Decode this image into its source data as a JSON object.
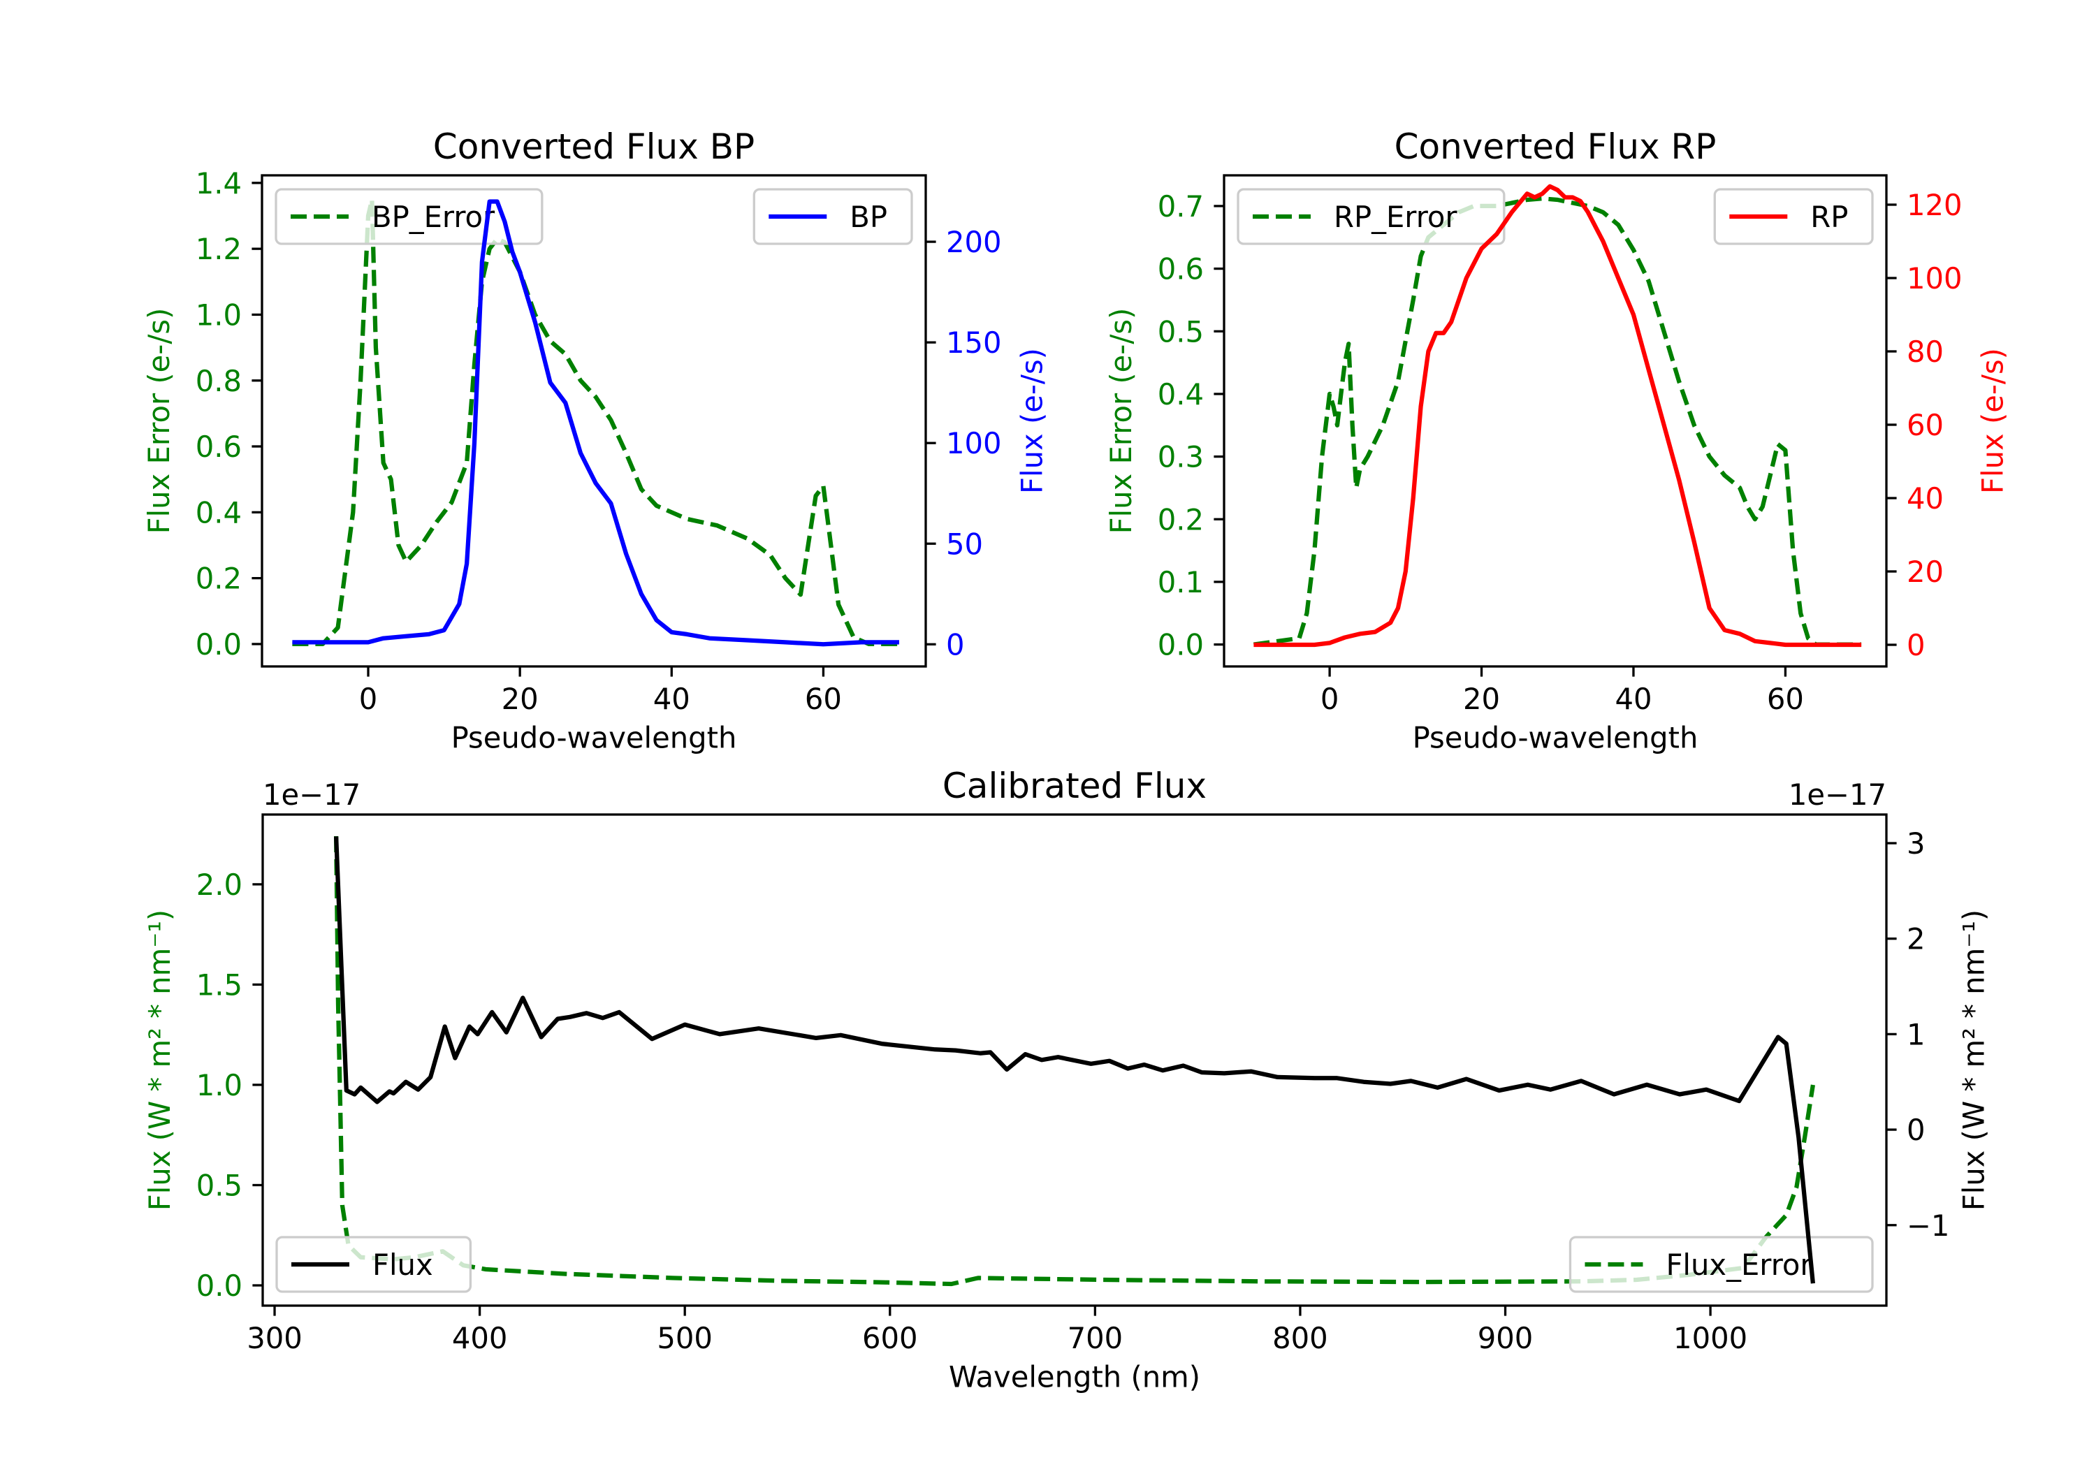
{
  "chart_data": [
    {
      "type": "line",
      "title": "Converted Flux BP",
      "xlabel": "Pseudo-wavelength",
      "xlim": [
        -14,
        73.5
      ],
      "xticks": [
        0,
        20,
        40,
        60
      ],
      "xtick_labels": [
        "0",
        "20",
        "40",
        "60"
      ],
      "left": {
        "label": "Flux Error (e-/s)",
        "color": "#008000",
        "ylim": [
          -0.068,
          1.423
        ],
        "ticks": [
          0,
          0.2,
          0.4,
          0.6,
          0.8,
          1.0,
          1.2,
          1.4
        ],
        "tick_labels": [
          "0.0",
          "0.2",
          "0.4",
          "0.6",
          "0.8",
          "1.0",
          "1.2",
          "1.4"
        ],
        "legend": "upper-left",
        "series": [
          {
            "name": "BP_Error",
            "color": "#008000",
            "style": "dashed",
            "x": [
              -10,
              -6,
              -4,
              -2,
              -1,
              0,
              0.5,
              1,
              2,
              3,
              4,
              5,
              7,
              9,
              11,
              13,
              14,
              15,
              16,
              17,
              18,
              20,
              22,
              24,
              26,
              28,
              30,
              32,
              34,
              36,
              38,
              42,
              46,
              50,
              53,
              55,
              57,
              58,
              59,
              60,
              61,
              62,
              64,
              66,
              70
            ],
            "y": [
              0,
              0,
              0.05,
              0.4,
              0.8,
              1.3,
              1.35,
              0.9,
              0.55,
              0.5,
              0.3,
              0.25,
              0.3,
              0.37,
              0.43,
              0.55,
              0.85,
              1.1,
              1.2,
              1.23,
              1.22,
              1.13,
              1.0,
              0.92,
              0.88,
              0.8,
              0.75,
              0.68,
              0.58,
              0.47,
              0.42,
              0.38,
              0.36,
              0.32,
              0.27,
              0.2,
              0.15,
              0.3,
              0.45,
              0.48,
              0.3,
              0.12,
              0.02,
              0,
              0
            ]
          }
        ]
      },
      "right": {
        "label": "Flux (e-/s)",
        "color": "#0000ff",
        "ylim": [
          -11,
          233
        ],
        "ticks": [
          0,
          50,
          100,
          150,
          200
        ],
        "tick_labels": [
          "0",
          "50",
          "100",
          "150",
          "200"
        ],
        "legend": "upper-right",
        "series": [
          {
            "name": "BP",
            "color": "#0000ff",
            "style": "solid",
            "x": [
              -10,
              -5,
              0,
              2,
              5,
              8,
              10,
              12,
              13,
              14,
              15,
              16,
              17,
              18,
              19,
              20,
              22,
              24,
              26,
              28,
              30,
              31,
              32,
              34,
              36,
              38,
              40,
              42,
              45,
              50,
              55,
              60,
              65,
              70
            ],
            "y": [
              1,
              1,
              1,
              3,
              4,
              5,
              7,
              20,
              40,
              100,
              190,
              220,
              220,
              210,
              195,
              185,
              160,
              130,
              120,
              95,
              80,
              75,
              70,
              45,
              25,
              12,
              6,
              5,
              3,
              2,
              1,
              0,
              1,
              1
            ]
          }
        ]
      }
    },
    {
      "type": "line",
      "title": "Converted Flux RP",
      "xlabel": "Pseudo-wavelength",
      "xlim": [
        -13.9,
        73.3
      ],
      "xticks": [
        0,
        20,
        40,
        60
      ],
      "xtick_labels": [
        "0",
        "20",
        "40",
        "60"
      ],
      "left": {
        "label": "Flux Error (e-/s)",
        "color": "#008000",
        "ylim": [
          -0.035,
          0.749
        ],
        "ticks": [
          0,
          0.1,
          0.2,
          0.3,
          0.4,
          0.5,
          0.6,
          0.7
        ],
        "tick_labels": [
          "0.0",
          "0.1",
          "0.2",
          "0.3",
          "0.4",
          "0.5",
          "0.6",
          "0.7"
        ],
        "legend": "upper-left",
        "series": [
          {
            "name": "RP_Error",
            "color": "#008000",
            "style": "dashed",
            "x": [
              -10,
              -4,
              -3,
              -2,
              -1,
              0,
              0.5,
              1,
              1.5,
              2,
              2.5,
              3,
              3.5,
              4,
              5,
              7,
              9,
              11,
              12,
              13,
              15,
              17,
              19,
              22,
              24,
              26,
              28,
              30,
              32,
              34,
              36,
              38,
              40,
              42,
              44,
              46,
              48,
              50,
              52,
              54,
              55,
              56,
              57,
              58,
              59,
              60,
              61,
              62,
              63,
              64,
              70
            ],
            "y": [
              0,
              0.01,
              0.05,
              0.15,
              0.3,
              0.4,
              0.38,
              0.35,
              0.4,
              0.45,
              0.48,
              0.35,
              0.25,
              0.28,
              0.3,
              0.35,
              0.42,
              0.55,
              0.62,
              0.65,
              0.67,
              0.69,
              0.7,
              0.7,
              0.705,
              0.71,
              0.712,
              0.71,
              0.705,
              0.7,
              0.69,
              0.67,
              0.63,
              0.58,
              0.5,
              0.42,
              0.35,
              0.3,
              0.27,
              0.25,
              0.22,
              0.2,
              0.22,
              0.27,
              0.32,
              0.31,
              0.15,
              0.05,
              0.01,
              0,
              0
            ]
          }
        ]
      },
      "right": {
        "label": "Flux (e-/s)",
        "color": "#ff0000",
        "ylim": [
          -5.9,
          128
        ],
        "ticks": [
          0,
          20,
          40,
          60,
          80,
          100,
          120
        ],
        "tick_labels": [
          "0",
          "20",
          "40",
          "60",
          "80",
          "100",
          "120"
        ],
        "legend": "upper-right",
        "series": [
          {
            "name": "RP",
            "color": "#ff0000",
            "style": "solid",
            "x": [
              -10,
              -2,
              0,
              2,
              4,
              6,
              8,
              9,
              10,
              11,
              12,
              13,
              14,
              15,
              16,
              18,
              20,
              22,
              24,
              26,
              27,
              28,
              29,
              30,
              31,
              32,
              33,
              34,
              36,
              38,
              40,
              42,
              44,
              46,
              48,
              50,
              52,
              54,
              56,
              58,
              60,
              70
            ],
            "y": [
              0,
              0,
              0.5,
              2,
              3,
              3.5,
              6,
              10,
              20,
              40,
              65,
              80,
              85,
              85,
              88,
              100,
              108,
              112,
              118,
              123,
              122,
              123,
              125,
              124,
              122,
              122,
              121,
              118,
              110,
              100,
              90,
              75,
              60,
              45,
              28,
              10,
              4,
              3,
              1,
              0.5,
              0,
              0
            ]
          }
        ]
      }
    },
    {
      "type": "line",
      "title": "Calibrated Flux",
      "xlabel": "Wavelength (nm)",
      "xlim": [
        294.2,
        1085.8
      ],
      "xticks": [
        300,
        400,
        500,
        600,
        700,
        800,
        900,
        1000
      ],
      "xtick_labels": [
        "300",
        "400",
        "500",
        "600",
        "700",
        "800",
        "900",
        "1000"
      ],
      "left": {
        "label": "Flux (W * m² * nm⁻¹)",
        "color": "#008000",
        "ylim": [
          -0.101,
          2.348
        ],
        "offset_text": "1e−17",
        "ticks": [
          0,
          0.5,
          1.0,
          1.5,
          2.0
        ],
        "tick_labels": [
          "0.0",
          "0.5",
          "1.0",
          "1.5",
          "2.0"
        ],
        "legend": "lower-right",
        "series": [
          {
            "name": "Flux_Error",
            "color": "#008000",
            "style": "dashed",
            "x": [
              330,
              331,
              332,
              333,
              336,
              342,
              358,
              368,
              382,
              392,
              403,
              442,
              494,
              546,
              598,
              630,
              643,
              703,
              781,
              859,
              937,
              964,
              990,
              1016,
              1027,
              1037,
              1042,
              1046,
              1050
            ],
            "y": [
              2.24,
              1.4,
              0.9,
              0.4,
              0.2,
              0.14,
              0.13,
              0.14,
              0.17,
              0.1,
              0.08,
              0.057,
              0.037,
              0.023,
              0.015,
              0.007,
              0.037,
              0.028,
              0.02,
              0.017,
              0.02,
              0.028,
              0.053,
              0.087,
              0.24,
              0.35,
              0.49,
              0.74,
              1.0
            ]
          }
        ]
      },
      "right": {
        "label": "Flux (W * m² * nm⁻¹)",
        "color": "#000000",
        "ylim": [
          -1.843,
          3.3
        ],
        "offset_text": "1e−17",
        "ticks": [
          -1,
          0,
          1,
          2,
          3
        ],
        "tick_labels": [
          "−1",
          "0",
          "1",
          "2",
          "3"
        ],
        "legend": "lower-left",
        "series": [
          {
            "name": "Flux",
            "color": "#000000",
            "style": "solid",
            "x": [
              330,
              335,
              339,
              342,
              350,
              356,
              358,
              364,
              370,
              376,
              383,
              388,
              395,
              399,
              406,
              413,
              421,
              430,
              438,
              444,
              452,
              460,
              468,
              484,
              500,
              517,
              536,
              564,
              576,
              596,
              622,
              632,
              644,
              649,
              657,
              666,
              674,
              682,
              698,
              707,
              716,
              724,
              733,
              743,
              752,
              763,
              776,
              789,
              807,
              818,
              831,
              844,
              854,
              867,
              881,
              897,
              911,
              922,
              937,
              953,
              969,
              985,
              998,
              1014,
              1033,
              1037,
              1043,
              1050
            ],
            "y": [
              3.07,
              0.41,
              0.37,
              0.44,
              0.29,
              0.4,
              0.38,
              0.5,
              0.42,
              0.55,
              1.08,
              0.75,
              1.08,
              1.0,
              1.23,
              1.02,
              1.38,
              0.97,
              1.16,
              1.18,
              1.22,
              1.17,
              1.23,
              0.95,
              1.1,
              1.0,
              1.06,
              0.96,
              0.99,
              0.9,
              0.84,
              0.83,
              0.8,
              0.81,
              0.63,
              0.79,
              0.73,
              0.76,
              0.69,
              0.72,
              0.64,
              0.68,
              0.62,
              0.67,
              0.6,
              0.59,
              0.61,
              0.55,
              0.54,
              0.54,
              0.5,
              0.48,
              0.51,
              0.44,
              0.53,
              0.41,
              0.47,
              0.42,
              0.51,
              0.37,
              0.47,
              0.37,
              0.42,
              0.3,
              0.97,
              0.9,
              -0.08,
              -1.61
            ]
          }
        ]
      }
    }
  ]
}
